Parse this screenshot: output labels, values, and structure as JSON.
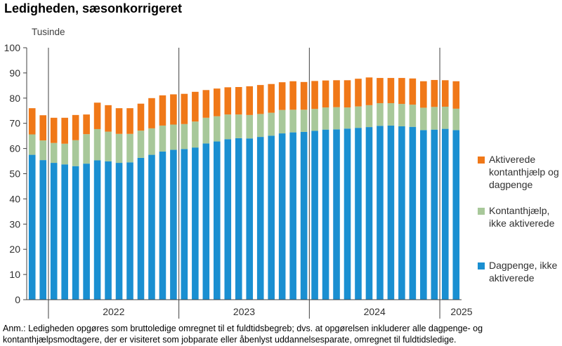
{
  "title": "Ledigheden, sæsonkorrigeret",
  "note": "Anm.: Ledigheden opgøres som bruttoledige omregnet til et fuldtidsbegreb; dvs. at opgørelsen inkluderer alle dagpenge- og kontanthjælpsmodtagere, der er visiteret som jobparate eller åbenlyst uddannelsesparate, omregnet til fuldtidsledige.",
  "chart_data": {
    "type": "bar",
    "stacked": true,
    "ylabel": "Tusinde",
    "ylim": [
      0,
      100
    ],
    "yticks": [
      0,
      10,
      20,
      30,
      40,
      50,
      60,
      70,
      80,
      90,
      100
    ],
    "grid": false,
    "legend_position": "right",
    "x_year_labels": [
      {
        "label": "2022",
        "index": 7.5
      },
      {
        "label": "2023",
        "index": 19.5
      },
      {
        "label": "2024",
        "index": 31.5
      },
      {
        "label": "2025",
        "index": 39.5
      }
    ],
    "x_year_dividers": [
      1.5,
      13.5,
      25.5,
      37.5
    ],
    "series": [
      {
        "name": "Dagpenge, ikke aktiverede",
        "color": "#1a8fd1",
        "values": [
          57.5,
          55.4,
          54.3,
          53.7,
          53.0,
          54.0,
          55.3,
          54.9,
          54.3,
          54.5,
          56.3,
          57.5,
          58.8,
          59.5,
          59.8,
          60.4,
          62.0,
          62.8,
          63.7,
          64.1,
          64.0,
          64.6,
          65.1,
          66.0,
          66.4,
          66.6,
          67.0,
          67.5,
          67.6,
          67.9,
          68.2,
          68.5,
          69.0,
          69.1,
          68.8,
          68.6,
          67.3,
          67.5,
          67.8,
          67.3
        ]
      },
      {
        "name": "Kontanthjælp, ikke aktiverede",
        "color": "#a8c89a",
        "values": [
          8.1,
          7.8,
          7.9,
          8.2,
          10.3,
          11.7,
          12.4,
          11.8,
          11.5,
          11.3,
          10.8,
          10.5,
          10.3,
          10.0,
          9.9,
          10.3,
          10.2,
          10.0,
          9.8,
          9.4,
          9.3,
          9.1,
          9.1,
          9.3,
          9.0,
          8.8,
          8.7,
          8.8,
          8.8,
          8.4,
          8.5,
          8.7,
          9.0,
          8.9,
          8.9,
          8.8,
          8.9,
          9.0,
          8.8,
          8.5
        ]
      },
      {
        "name": "Aktiverede kontanthjælp og dagpenge",
        "color": "#f07818",
        "values": [
          10.4,
          10.0,
          10.0,
          10.3,
          10.0,
          7.8,
          10.5,
          10.5,
          10.2,
          10.2,
          10.7,
          12.0,
          12.0,
          12.0,
          12.0,
          11.8,
          11.0,
          11.0,
          10.8,
          10.9,
          11.4,
          11.5,
          11.4,
          11.0,
          11.3,
          11.0,
          11.1,
          10.7,
          10.7,
          10.8,
          11.0,
          11.0,
          10.0,
          10.0,
          10.3,
          10.4,
          10.5,
          10.7,
          10.5,
          10.9
        ]
      }
    ]
  }
}
